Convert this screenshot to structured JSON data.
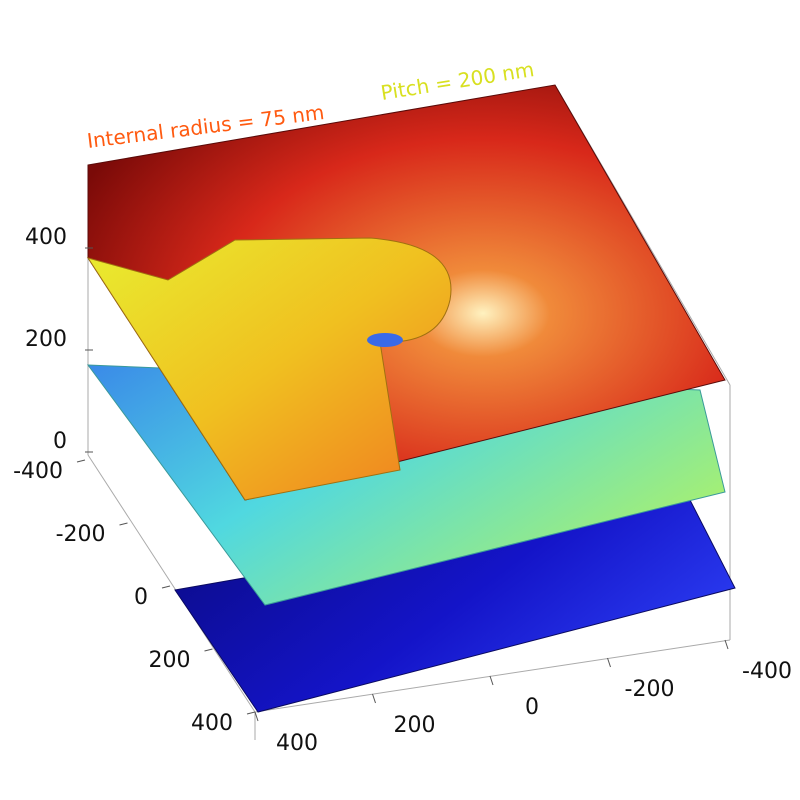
{
  "chart_data": {
    "type": "surface3d",
    "annotations": [
      "Internal radius = 75 nm",
      "Pitch = 200 nm"
    ],
    "xlim": [
      -400,
      400
    ],
    "xticks": [
      -400,
      -200,
      0,
      200,
      400
    ],
    "ylim": [
      -400,
      400
    ],
    "yticks": [
      -400,
      -200,
      0,
      200,
      400
    ],
    "zlim": [
      0,
      400
    ],
    "zticks": [
      0,
      200,
      400
    ]
  }
}
